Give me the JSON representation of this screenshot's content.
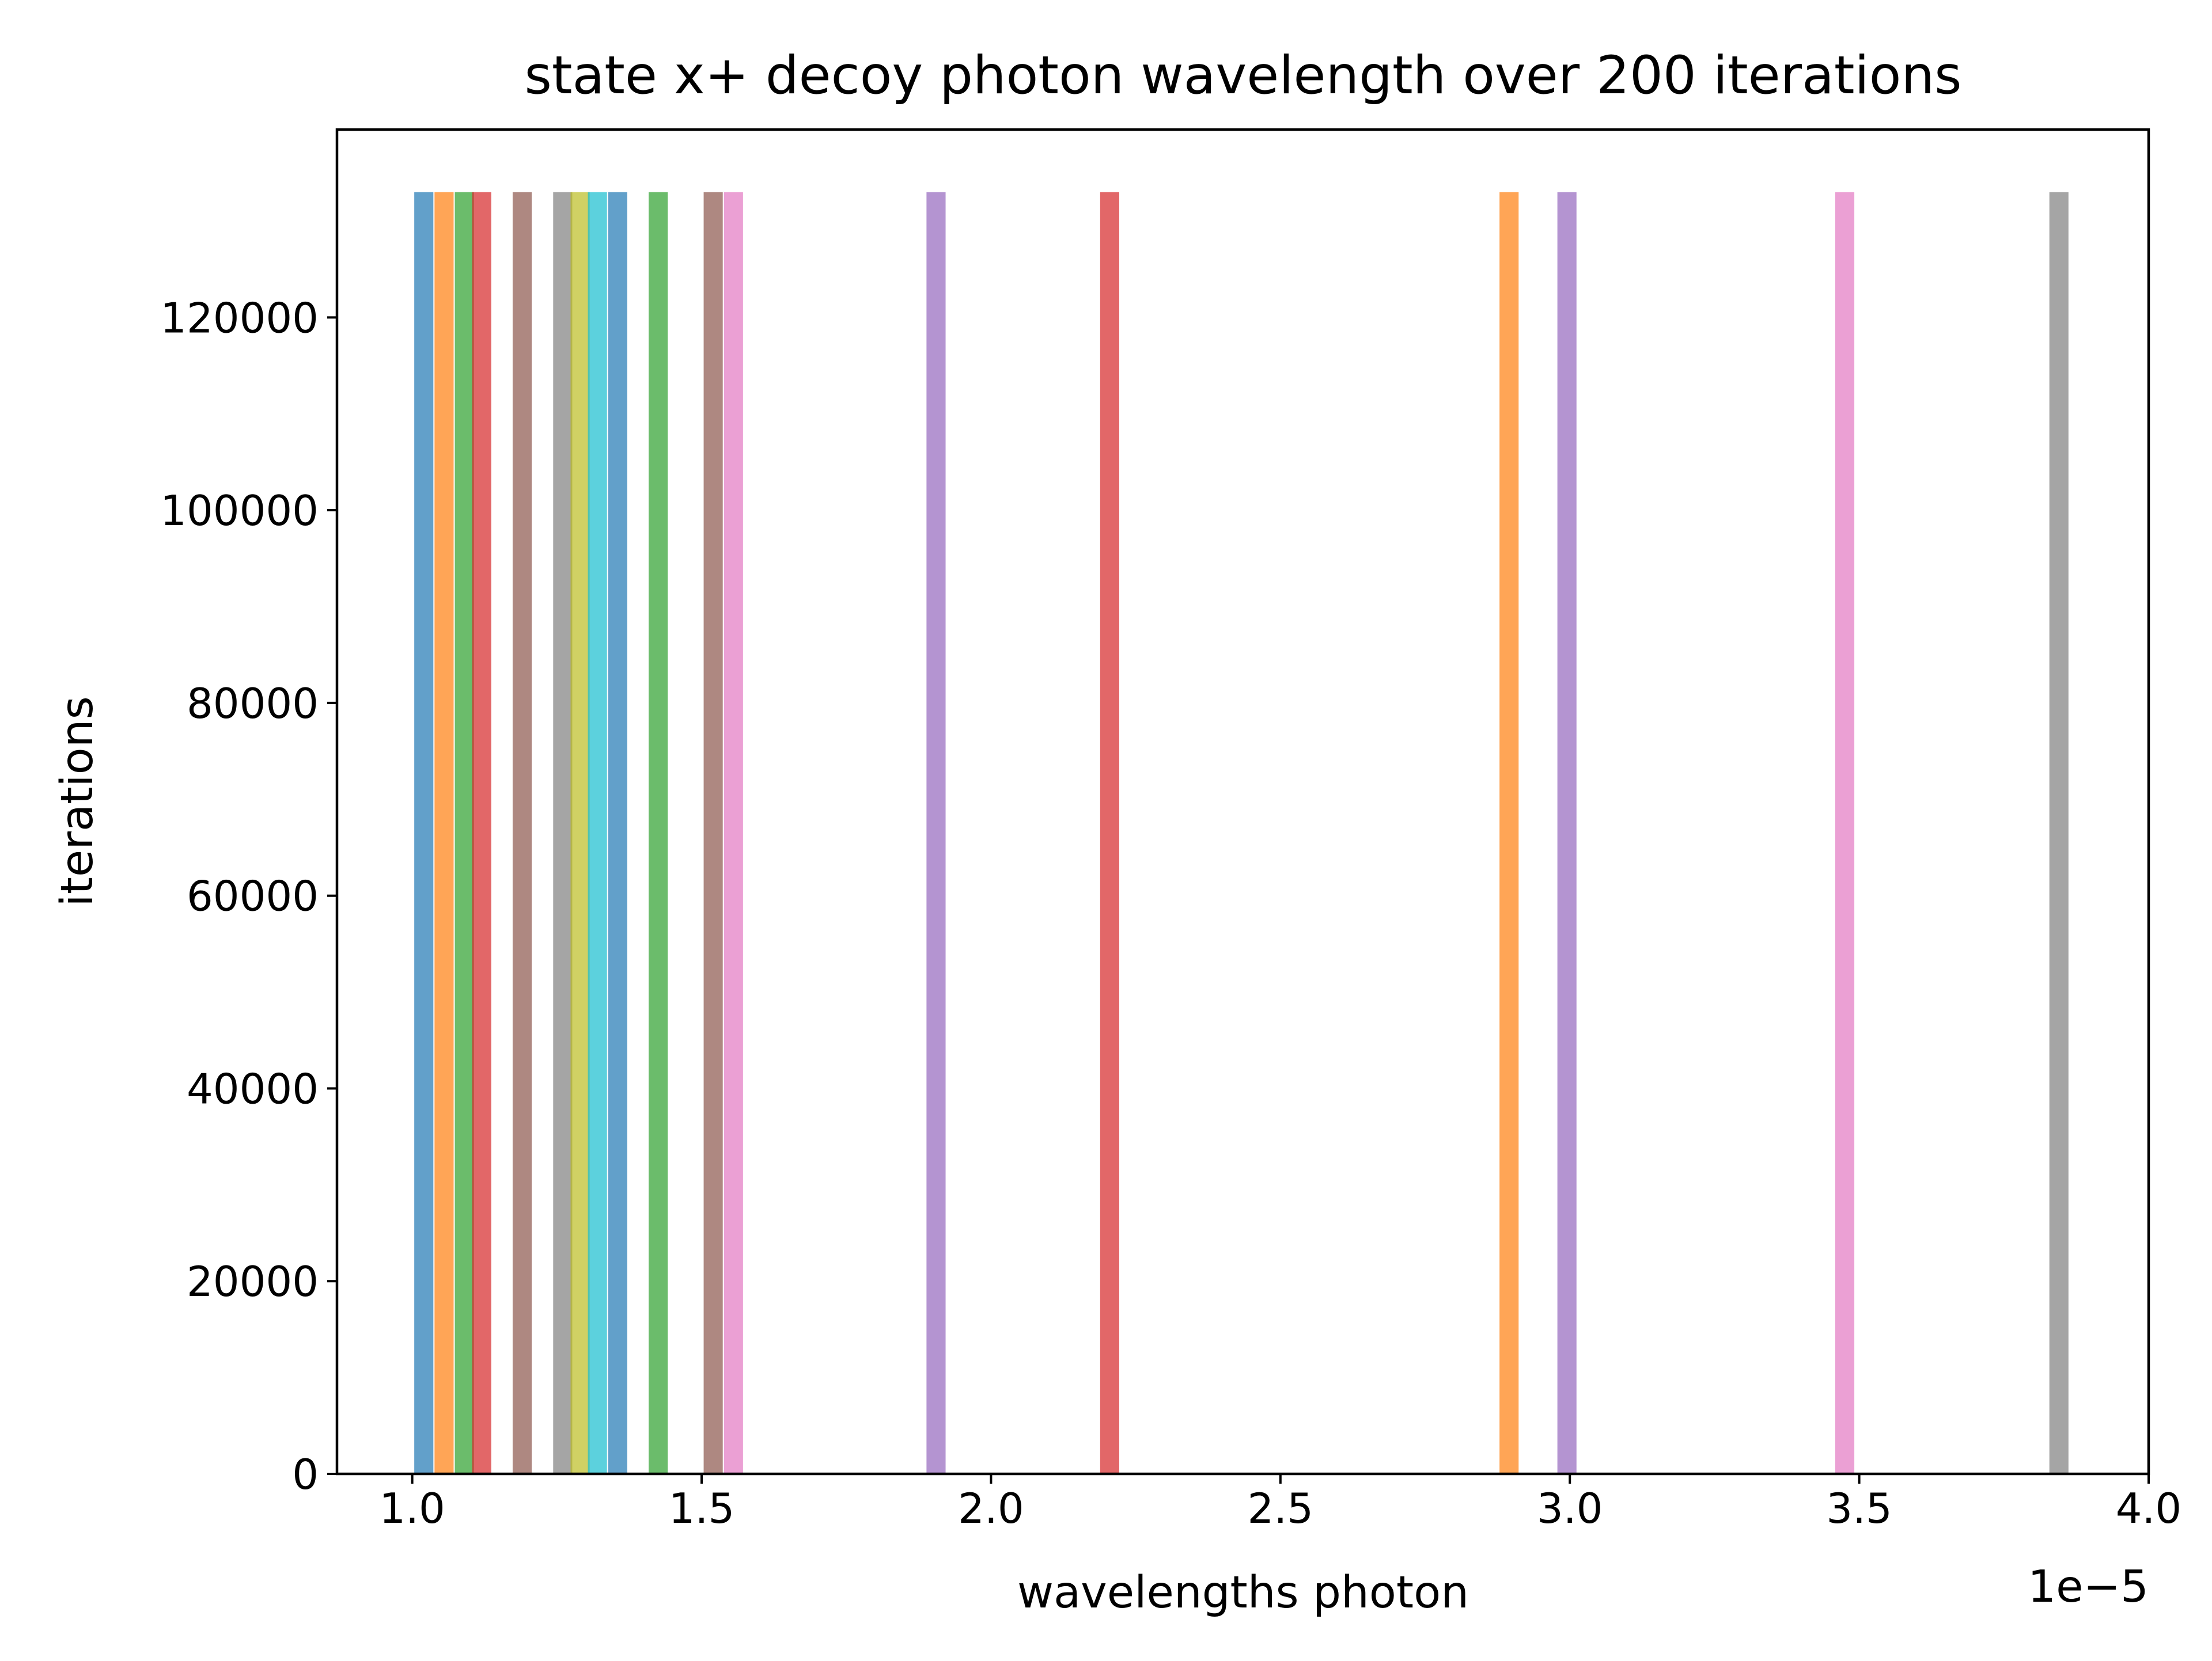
{
  "chart_data": {
    "type": "bar",
    "title": "state x+ decoy photon wavelength over 200 iterations",
    "xlabel": "wavelengths photon",
    "ylabel": "iterations",
    "x_offset_text": "1e−5",
    "xlim": [
      0.87,
      4.0
    ],
    "ylim": [
      0,
      139500
    ],
    "x_ticks": [
      1.0,
      1.5,
      2.0,
      2.5,
      3.0,
      3.5,
      4.0
    ],
    "x_tick_labels": [
      "1.0",
      "1.5",
      "2.0",
      "2.5",
      "3.0",
      "3.5",
      "4.0"
    ],
    "y_ticks": [
      0,
      20000,
      40000,
      60000,
      80000,
      100000,
      120000
    ],
    "y_tick_labels": [
      "0",
      "20000",
      "40000",
      "60000",
      "80000",
      "100000",
      "120000"
    ],
    "grid": false,
    "bar_width": 0.033,
    "bars": [
      {
        "x": 1.02,
        "value": 133000,
        "color": "#1f77b4"
      },
      {
        "x": 1.055,
        "value": 133000,
        "color": "#ff7f0e"
      },
      {
        "x": 1.09,
        "value": 133000,
        "color": "#2ca02c"
      },
      {
        "x": 1.12,
        "value": 133000,
        "color": "#d62728"
      },
      {
        "x": 1.19,
        "value": 133000,
        "color": "#8c564b"
      },
      {
        "x": 1.26,
        "value": 133000,
        "color": "#7f7f7f"
      },
      {
        "x": 1.29,
        "value": 133000,
        "color": "#bcbd22"
      },
      {
        "x": 1.32,
        "value": 133000,
        "color": "#17becf"
      },
      {
        "x": 1.355,
        "value": 133000,
        "color": "#1f77b4"
      },
      {
        "x": 1.425,
        "value": 133000,
        "color": "#2ca02c"
      },
      {
        "x": 1.52,
        "value": 133000,
        "color": "#8c564b"
      },
      {
        "x": 1.555,
        "value": 133000,
        "color": "#e377c2"
      },
      {
        "x": 1.905,
        "value": 133000,
        "color": "#9467bd"
      },
      {
        "x": 2.205,
        "value": 133000,
        "color": "#d62728"
      },
      {
        "x": 2.895,
        "value": 133000,
        "color": "#ff7f0e"
      },
      {
        "x": 2.995,
        "value": 133000,
        "color": "#9467bd"
      },
      {
        "x": 3.475,
        "value": 133000,
        "color": "#e377c2"
      },
      {
        "x": 3.845,
        "value": 133000,
        "color": "#7f7f7f"
      }
    ],
    "bar_opacity": 0.7
  }
}
